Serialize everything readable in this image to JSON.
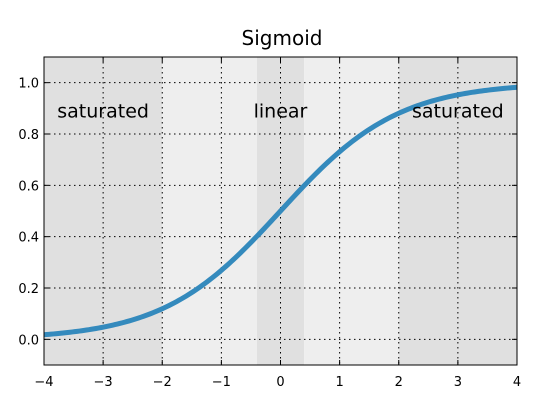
{
  "chart_data": {
    "type": "line",
    "title": "Sigmoid",
    "xlabel": "",
    "ylabel": "",
    "xlim": [
      -4,
      4
    ],
    "ylim": [
      -0.1,
      1.1
    ],
    "x_ticks": [
      -4,
      -3,
      -2,
      -1,
      0,
      1,
      2,
      3,
      4
    ],
    "x_tick_labels": [
      "−4",
      "−3",
      "−2",
      "−1",
      "0",
      "1",
      "2",
      "3",
      "4"
    ],
    "y_ticks": [
      0.0,
      0.2,
      0.4,
      0.6,
      0.8,
      1.0
    ],
    "y_tick_labels": [
      "0.0",
      "0.2",
      "0.4",
      "0.6",
      "0.8",
      "1.0"
    ],
    "grid": true,
    "series": [
      {
        "function": "1/(1+exp(-x))",
        "x": [
          -4,
          -3.5,
          -3,
          -2.5,
          -2,
          -1.5,
          -1,
          -0.5,
          0,
          0.5,
          1,
          1.5,
          2,
          2.5,
          3,
          3.5,
          4
        ],
        "y": [
          0.018,
          0.029,
          0.047,
          0.076,
          0.119,
          0.182,
          0.269,
          0.378,
          0.5,
          0.622,
          0.731,
          0.818,
          0.881,
          0.924,
          0.953,
          0.971,
          0.982
        ],
        "color": "#348abd"
      }
    ],
    "regions": [
      {
        "label": "saturated",
        "x_start": -4,
        "x_end": -2,
        "color": "#e0e0e0"
      },
      {
        "label": "",
        "x_start": -2,
        "x_end": -0.4,
        "color": "#eeeeee"
      },
      {
        "label": "linear",
        "x_start": -0.4,
        "x_end": 0.4,
        "color": "#e0e0e0"
      },
      {
        "label": "",
        "x_start": 0.4,
        "x_end": 2,
        "color": "#eeeeee"
      },
      {
        "label": "saturated",
        "x_start": 2,
        "x_end": 4,
        "color": "#e0e0e0"
      }
    ],
    "annotations": [
      {
        "text": "saturated",
        "x": -3,
        "y": 0.9
      },
      {
        "text": "linear",
        "x": 0,
        "y": 0.9
      },
      {
        "text": "saturated",
        "x": 3,
        "y": 0.9
      }
    ]
  }
}
